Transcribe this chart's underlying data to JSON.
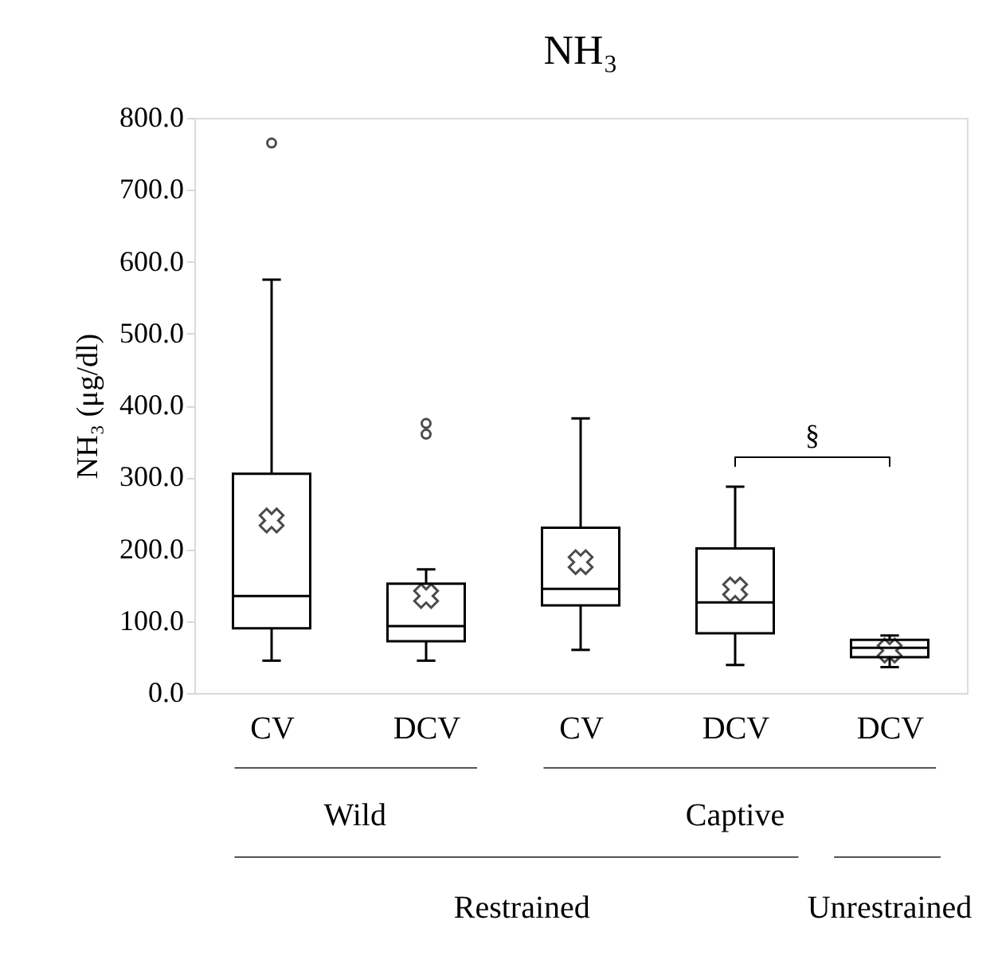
{
  "chart_data": {
    "type": "box",
    "title": "NH₃",
    "ylabel": "NH₃ (μg/dl)",
    "categories": [
      "CV",
      "DCV",
      "CV",
      "DCV",
      "DCV"
    ],
    "boxes": [
      {
        "low": 45,
        "q1": 90,
        "median": 135,
        "q3": 305,
        "high": 575,
        "mean": 240,
        "outliers": [
          765
        ]
      },
      {
        "low": 45,
        "q1": 72,
        "median": 93,
        "q3": 152,
        "high": 172,
        "mean": 135,
        "outliers": [
          360,
          375
        ]
      },
      {
        "low": 60,
        "q1": 122,
        "median": 145,
        "q3": 230,
        "high": 382,
        "mean": 182
      },
      {
        "low": 39,
        "q1": 83,
        "median": 126,
        "q3": 201,
        "high": 287,
        "mean": 144
      },
      {
        "low": 36,
        "q1": 50,
        "median": 63,
        "q3": 74,
        "high": 80,
        "mean": 59
      }
    ],
    "ylim": [
      0,
      800
    ],
    "yticks": [
      {
        "value": 0,
        "label": "0.0"
      },
      {
        "value": 100,
        "label": "100.0"
      },
      {
        "value": 200,
        "label": "200.0"
      },
      {
        "value": 300,
        "label": "300.0"
      },
      {
        "value": 400,
        "label": "400.0"
      },
      {
        "value": 500,
        "label": "500.0"
      },
      {
        "value": 600,
        "label": "600.0"
      },
      {
        "value": 700,
        "label": "700.0"
      },
      {
        "value": 800,
        "label": "800.0"
      }
    ],
    "annotations": [
      "§",
      "Wild",
      "Captive",
      "Restrained",
      "Unrestrained"
    ],
    "grid": false
  }
}
